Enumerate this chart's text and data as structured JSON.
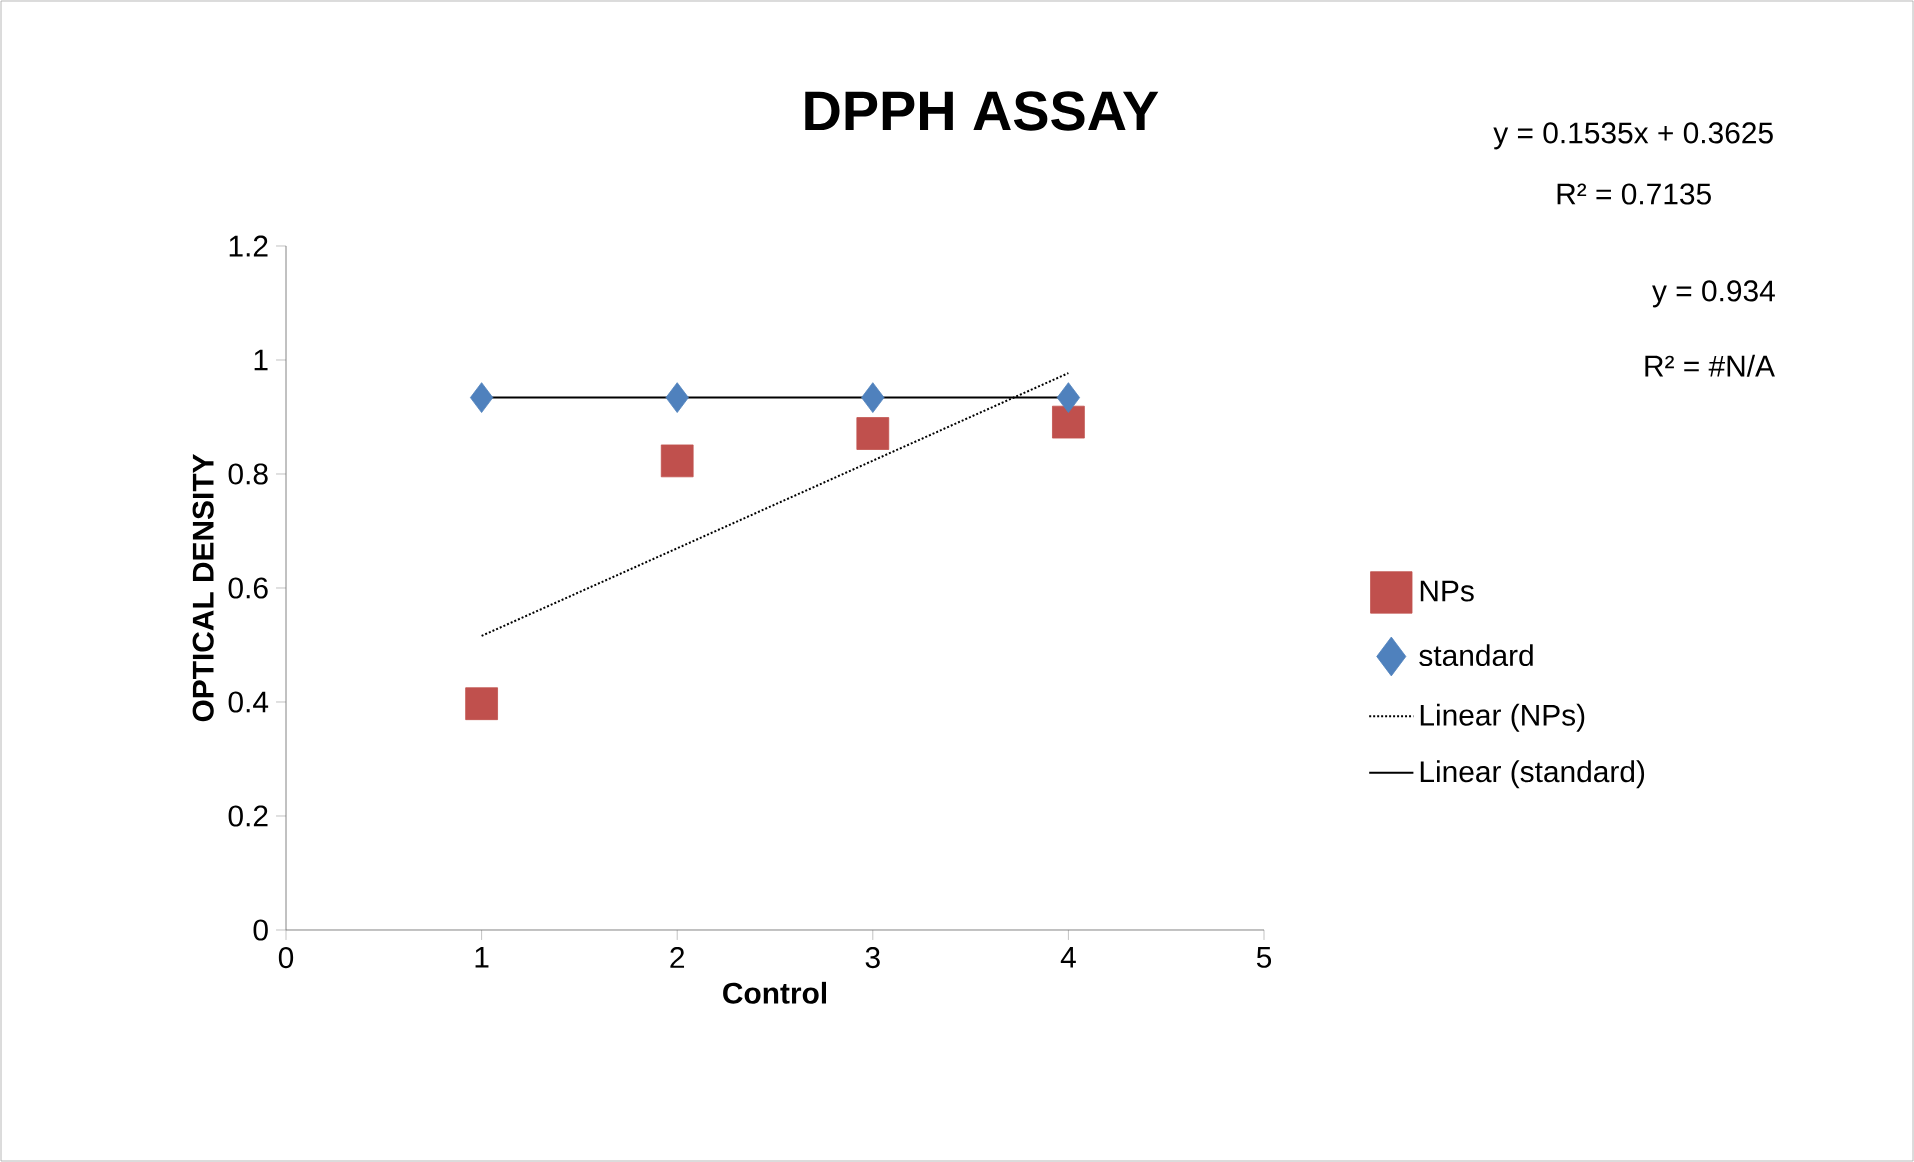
{
  "chart_data": {
    "type": "scatter",
    "title": "DPPH ASSAY",
    "xlabel": "Control",
    "ylabel": "OPTICAL DENSITY",
    "xlim": [
      0,
      5
    ],
    "xticks": [
      0,
      1,
      2,
      3,
      4,
      5
    ],
    "ylim": [
      0,
      1.2
    ],
    "yticks": [
      0,
      0.2,
      0.4,
      0.6,
      0.8,
      1,
      1.2
    ],
    "legend": "right",
    "grid": false,
    "series": [
      {
        "name": "NPs",
        "marker": "square",
        "color": "#c0504d",
        "x": [
          1,
          2,
          3,
          4
        ],
        "values": [
          0.397,
          0.823,
          0.871,
          0.891
        ]
      },
      {
        "name": "standard",
        "marker": "diamond",
        "color": "#4f81bd",
        "x": [
          1,
          2,
          3,
          4
        ],
        "values": [
          0.934,
          0.934,
          0.934,
          0.934
        ]
      },
      {
        "name": "Linear (NPs)",
        "type": "line",
        "line_style": "dotted",
        "color": "#000000",
        "x": [
          1,
          4
        ],
        "values": [
          0.516,
          0.977
        ]
      },
      {
        "name": "Linear (standard)",
        "type": "line",
        "line_style": "solid",
        "color": "#000000",
        "x": [
          1,
          4
        ],
        "values": [
          0.934,
          0.934
        ]
      }
    ],
    "annotations": [
      "y = 0.1535x + 0.3625",
      "R² = 0.7135",
      "y = 0.934",
      "R² = #N/A"
    ]
  }
}
